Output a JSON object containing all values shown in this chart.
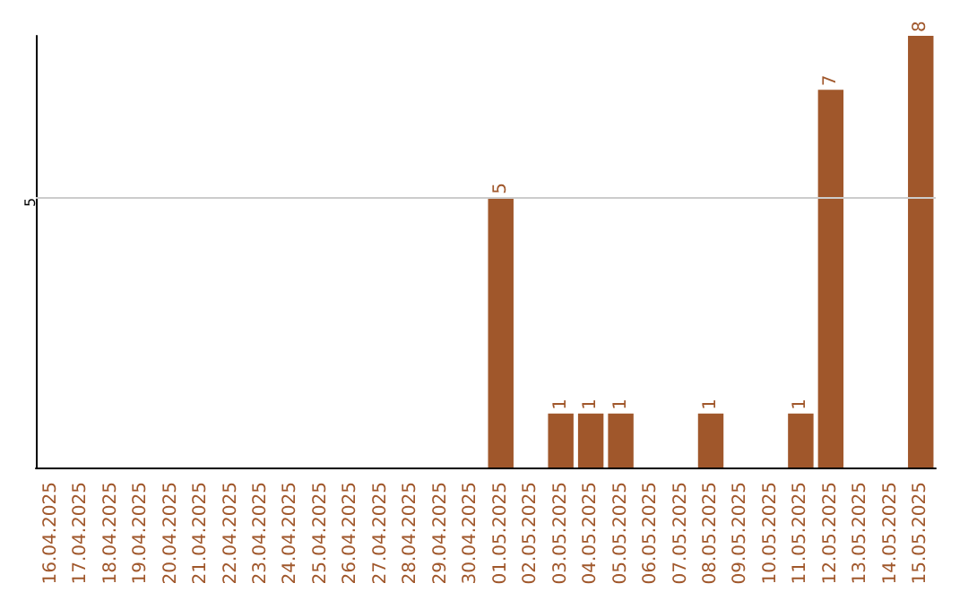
{
  "chart_data": {
    "type": "bar",
    "data_labels": true,
    "tick_labels": "x",
    "ylim": [
      0,
      8
    ],
    "categories": [
      "16.04.2025",
      "17.04.2025",
      "18.04.2025",
      "19.04.2025",
      "20.04.2025",
      "21.04.2025",
      "22.04.2025",
      "23.04.2025",
      "24.04.2025",
      "25.04.2025",
      "26.04.2025",
      "27.04.2025",
      "28.04.2025",
      "29.04.2025",
      "30.04.2025",
      "01.05.2025",
      "02.05.2025",
      "03.05.2025",
      "04.05.2025",
      "05.05.2025",
      "06.05.2025",
      "07.05.2025",
      "08.05.2025",
      "09.05.2025",
      "10.05.2025",
      "11.05.2025",
      "12.05.2025",
      "13.05.2025",
      "14.05.2025",
      "15.05.2025"
    ],
    "values": [
      null,
      null,
      null,
      null,
      null,
      null,
      null,
      null,
      null,
      null,
      null,
      null,
      null,
      null,
      null,
      5,
      null,
      1,
      1,
      1,
      null,
      null,
      1,
      null,
      null,
      1,
      7,
      null,
      null,
      8
    ],
    "color": "#a0572b",
    "ref_lines": [
      {
        "axis": "y",
        "value": 5,
        "label": "5",
        "color": "#cccccc"
      }
    ]
  }
}
